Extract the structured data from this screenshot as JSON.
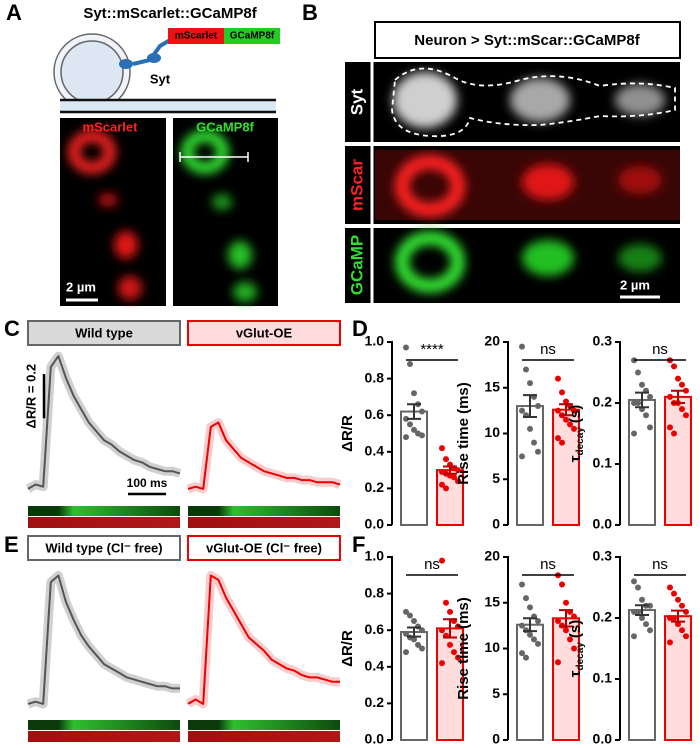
{
  "panels": {
    "A": {
      "label": "A",
      "title": "Syt::mScarlet::GCaMP8f",
      "box1": "mScarlet",
      "box2": "GCaMP8f",
      "protein": "Syt",
      "image1": "mScarlet",
      "image2": "GCaMP8f",
      "scale": "2 µm"
    },
    "B": {
      "label": "B",
      "title": "Neuron > Syt::mScar::GCaMP8f",
      "rows": [
        "Syt",
        "mScar",
        "GCaMP"
      ],
      "scale": "2 µm"
    },
    "C": {
      "label": "C",
      "conditions": [
        "Wild type",
        "vGlut-OE"
      ]
    },
    "D": {
      "label": "D"
    },
    "E": {
      "label": "E",
      "conditions": [
        "Wild type (Cl⁻ free)",
        "vGlut-OE (Cl⁻ free)"
      ]
    },
    "F": {
      "label": "F"
    }
  },
  "chart_data": [
    {
      "type": "line",
      "color": "#555555",
      "band_color": "#d0d0d0",
      "xlim": [
        0,
        400
      ],
      "ylim": [
        -0.05,
        0.65
      ],
      "x": [
        0,
        20,
        40,
        60,
        80,
        100,
        120,
        140,
        160,
        180,
        200,
        220,
        240,
        260,
        280,
        300,
        320,
        340,
        360,
        380,
        400
      ],
      "values": [
        0,
        0.02,
        0.01,
        0.55,
        0.6,
        0.5,
        0.42,
        0.36,
        0.3,
        0.26,
        0.22,
        0.2,
        0.17,
        0.15,
        0.13,
        0.12,
        0.1,
        0.09,
        0.08,
        0.08,
        0.07
      ],
      "scale_bar": {
        "x": 100,
        "x_label": "100 ms",
        "y": 0.2,
        "y_label": "ΔR/R = 0.2"
      }
    },
    {
      "type": "line",
      "color": "#ee0000",
      "band_color": "#f8cccc",
      "xlim": [
        0,
        400
      ],
      "ylim": [
        -0.05,
        0.65
      ],
      "x": [
        0,
        20,
        40,
        60,
        80,
        100,
        120,
        140,
        160,
        180,
        200,
        220,
        240,
        260,
        280,
        300,
        320,
        340,
        360,
        380,
        400
      ],
      "values": [
        0,
        0.01,
        0,
        0.28,
        0.3,
        0.22,
        0.18,
        0.14,
        0.12,
        0.1,
        0.08,
        0.07,
        0.06,
        0.05,
        0.05,
        0.04,
        0.04,
        0.03,
        0.03,
        0.03,
        0.02
      ]
    },
    {
      "type": "line",
      "color": "#555555",
      "band_color": "#d0d0d0",
      "xlim": [
        0,
        400
      ],
      "ylim": [
        -0.05,
        0.65
      ],
      "x": [
        0,
        20,
        40,
        60,
        80,
        100,
        120,
        140,
        160,
        180,
        200,
        220,
        240,
        260,
        280,
        300,
        320,
        340,
        360,
        380,
        400
      ],
      "values": [
        0,
        0.01,
        0,
        0.55,
        0.58,
        0.46,
        0.38,
        0.31,
        0.26,
        0.22,
        0.18,
        0.16,
        0.14,
        0.12,
        0.11,
        0.1,
        0.09,
        0.08,
        0.08,
        0.07,
        0.07
      ]
    },
    {
      "type": "line",
      "color": "#ee0000",
      "band_color": "#f8cccc",
      "xlim": [
        0,
        400
      ],
      "ylim": [
        -0.05,
        0.65
      ],
      "x": [
        0,
        20,
        40,
        60,
        80,
        100,
        120,
        140,
        160,
        180,
        200,
        220,
        240,
        260,
        280,
        300,
        320,
        340,
        360,
        380,
        400
      ],
      "values": [
        0,
        0.02,
        0,
        0.58,
        0.56,
        0.48,
        0.42,
        0.36,
        0.3,
        0.27,
        0.24,
        0.2,
        0.18,
        0.16,
        0.15,
        0.13,
        0.12,
        0.12,
        0.11,
        0.1,
        0.1
      ]
    },
    {
      "type": "bar",
      "ylabel": "ΔR/R",
      "ylim": [
        0,
        1
      ],
      "yticks": [
        {
          "value": 0,
          "label": "0.0"
        },
        0.2,
        0.4,
        0.6,
        0.8,
        {
          "value": 1,
          "label": "1.0"
        }
      ],
      "values": [
        0.62,
        0.3
      ],
      "errors": [
        0.04,
        0.02
      ],
      "colors": [
        "#666666",
        "#ee0000"
      ],
      "fills": [
        "#ffffff",
        "#ffdddd"
      ],
      "points": [
        [
          0.97,
          0.88,
          0.72,
          0.66,
          0.62,
          0.58,
          0.55,
          0.52,
          0.5,
          0.49,
          0.48
        ],
        [
          0.42,
          0.36,
          0.33,
          0.31,
          0.3,
          0.29,
          0.28,
          0.27,
          0.26,
          0.24,
          0.22,
          0.2
        ]
      ],
      "annotation": "****"
    },
    {
      "type": "bar",
      "ylabel": "Rise time (ms)",
      "ylim": [
        0,
        20
      ],
      "yticks": [
        0,
        5,
        10,
        15,
        20
      ],
      "values": [
        13,
        12.6
      ],
      "errors": [
        1.2,
        0.6
      ],
      "colors": [
        "#666666",
        "#ee0000"
      ],
      "fills": [
        "#ffffff",
        "#ffdddd"
      ],
      "points": [
        [
          19.5,
          17,
          15.5,
          14,
          13,
          12.5,
          12,
          10.5,
          9,
          8,
          7.5
        ],
        [
          16,
          14.5,
          13.5,
          13,
          12.5,
          12.5,
          12,
          11.5,
          11,
          10.5,
          9.5,
          9
        ]
      ],
      "annotation": "ns"
    },
    {
      "type": "bar",
      "ylabel": "τ",
      "ylabel_sub": "decay",
      "ylabel_unit": "(s)",
      "ylim": [
        0,
        0.3
      ],
      "yticks": [
        {
          "value": 0,
          "label": "0.0"
        },
        0.1,
        0.2,
        0.3
      ],
      "values": [
        0.205,
        0.21
      ],
      "errors": [
        0.012,
        0.01
      ],
      "colors": [
        "#666666",
        "#ee0000"
      ],
      "fills": [
        "#ffffff",
        "#ffdddd"
      ],
      "points": [
        [
          0.27,
          0.25,
          0.23,
          0.22,
          0.21,
          0.2,
          0.2,
          0.19,
          0.18,
          0.16,
          0.15
        ],
        [
          0.27,
          0.26,
          0.24,
          0.23,
          0.22,
          0.21,
          0.2,
          0.2,
          0.19,
          0.18,
          0.16,
          0.15
        ]
      ],
      "annotation": "ns"
    },
    {
      "type": "bar",
      "ylabel": "ΔR/R",
      "ylim": [
        0,
        1
      ],
      "yticks": [
        {
          "value": 0,
          "label": "0.0"
        },
        0.2,
        0.4,
        0.6,
        0.8,
        {
          "value": 1,
          "label": "1.0"
        }
      ],
      "values": [
        0.59,
        0.61
      ],
      "errors": [
        0.025,
        0.05
      ],
      "colors": [
        "#666666",
        "#ee0000"
      ],
      "fills": [
        "#ffffff",
        "#ffdddd"
      ],
      "points": [
        [
          0.7,
          0.68,
          0.65,
          0.62,
          0.6,
          0.58,
          0.56,
          0.55,
          0.52,
          0.5,
          0.48
        ],
        [
          0.98,
          0.75,
          0.7,
          0.65,
          0.62,
          0.6,
          0.57,
          0.52,
          0.48,
          0.45,
          0.42
        ]
      ],
      "annotation": "ns"
    },
    {
      "type": "bar",
      "ylabel": "Rise time (ms)",
      "ylim": [
        0,
        20
      ],
      "yticks": [
        0,
        5,
        10,
        15,
        20
      ],
      "values": [
        12.6,
        13.3
      ],
      "errors": [
        0.7,
        0.9
      ],
      "colors": [
        "#666666",
        "#ee0000"
      ],
      "fills": [
        "#ffffff",
        "#ffdddd"
      ],
      "points": [
        [
          17,
          15.5,
          14.5,
          13.5,
          13,
          12.5,
          12,
          11.5,
          11,
          10.5,
          9.5,
          9
        ],
        [
          18,
          17,
          15,
          14,
          13.5,
          13,
          12.5,
          12,
          11,
          10,
          8.5
        ]
      ],
      "annotation": "ns"
    },
    {
      "type": "bar",
      "ylabel": "τ",
      "ylabel_sub": "decay",
      "ylabel_unit": "(s)",
      "ylim": [
        0,
        0.3
      ],
      "yticks": [
        {
          "value": 0,
          "label": "0.0"
        },
        0.1,
        0.2,
        0.3
      ],
      "values": [
        0.213,
        0.203
      ],
      "errors": [
        0.008,
        0.009
      ],
      "colors": [
        "#666666",
        "#ee0000"
      ],
      "fills": [
        "#ffffff",
        "#ffdddd"
      ],
      "points": [
        [
          0.26,
          0.25,
          0.23,
          0.22,
          0.22,
          0.21,
          0.21,
          0.2,
          0.19,
          0.18,
          0.17
        ],
        [
          0.25,
          0.24,
          0.23,
          0.22,
          0.21,
          0.2,
          0.2,
          0.19,
          0.18,
          0.17,
          0.16
        ]
      ],
      "annotation": "ns"
    }
  ]
}
